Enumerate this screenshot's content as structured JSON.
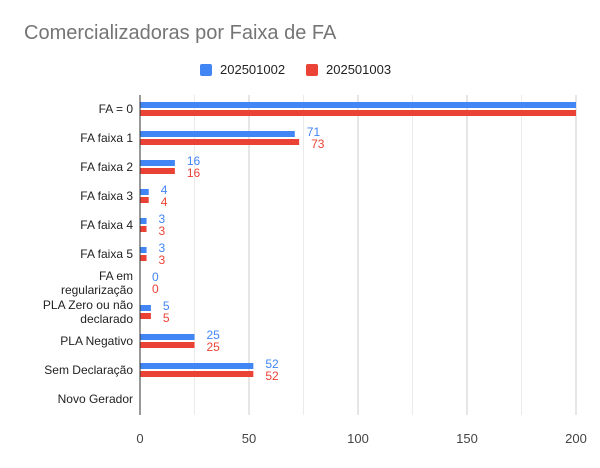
{
  "chart_data": {
    "type": "bar",
    "orientation": "horizontal",
    "title": "Comercializadoras por Faixa de FA",
    "categories": [
      "FA = 0",
      "FA faixa 1",
      "FA faixa 2",
      "FA faixa 3",
      "FA faixa 4",
      "FA faixa 5",
      "FA em regularização",
      "PLA Zero ou não declarado",
      "PLA Negativo",
      "Sem Declaração",
      "Novo Gerador"
    ],
    "series": [
      {
        "name": "202501002",
        "color": "#4285f4",
        "values": [
          200,
          71,
          16,
          4,
          3,
          3,
          0,
          5,
          25,
          52,
          null
        ]
      },
      {
        "name": "202501003",
        "color": "#ea4335",
        "values": [
          200,
          73,
          16,
          4,
          3,
          3,
          0,
          5,
          25,
          52,
          null
        ]
      }
    ],
    "xlim": [
      0,
      200
    ],
    "xticks": [
      0,
      50,
      100,
      150,
      200
    ],
    "grid": true,
    "legend_position": "top"
  }
}
